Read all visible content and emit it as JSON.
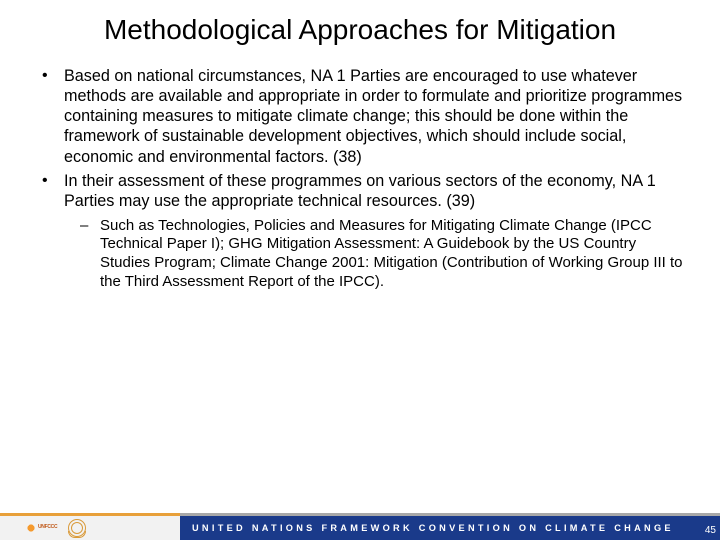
{
  "title": "Methodological Approaches for Mitigation",
  "bullets": {
    "b1": "Based on national circumstances, NA 1 Parties are encouraged to use whatever methods are available and appropriate in order to formulate and prioritize programmes containing measures to mitigate climate change; this should be done within the framework of sustainable development objectives, which should include social, economic and environmental factors. (38)",
    "b2": "In their assessment of these programmes on various sectors of the economy, NA 1 Parties may use the appropriate technical resources. (39)",
    "b2_sub1": "Such as Technologies, Policies and Measures for Mitigating Climate Change (IPCC Technical Paper I); GHG Mitigation Assessment: A Guidebook by the US Country Studies Program; Climate Change 2001: Mitigation (Contribution of Working Group III to the Third Assessment Report of the IPCC)."
  },
  "footer": {
    "org_text": "UNITED NATIONS FRAMEWORK CONVENTION ON CLIMATE CHANGE",
    "logo_label": "UNFCCC"
  },
  "page_number": "45",
  "colors": {
    "footer_bar": "#1a3a8a",
    "footer_left_bg": "#f2f2f2",
    "stripe_orange": "#e8a03a",
    "stripe_gray": "#a8a8a8",
    "text": "#000000",
    "bg": "#ffffff"
  }
}
